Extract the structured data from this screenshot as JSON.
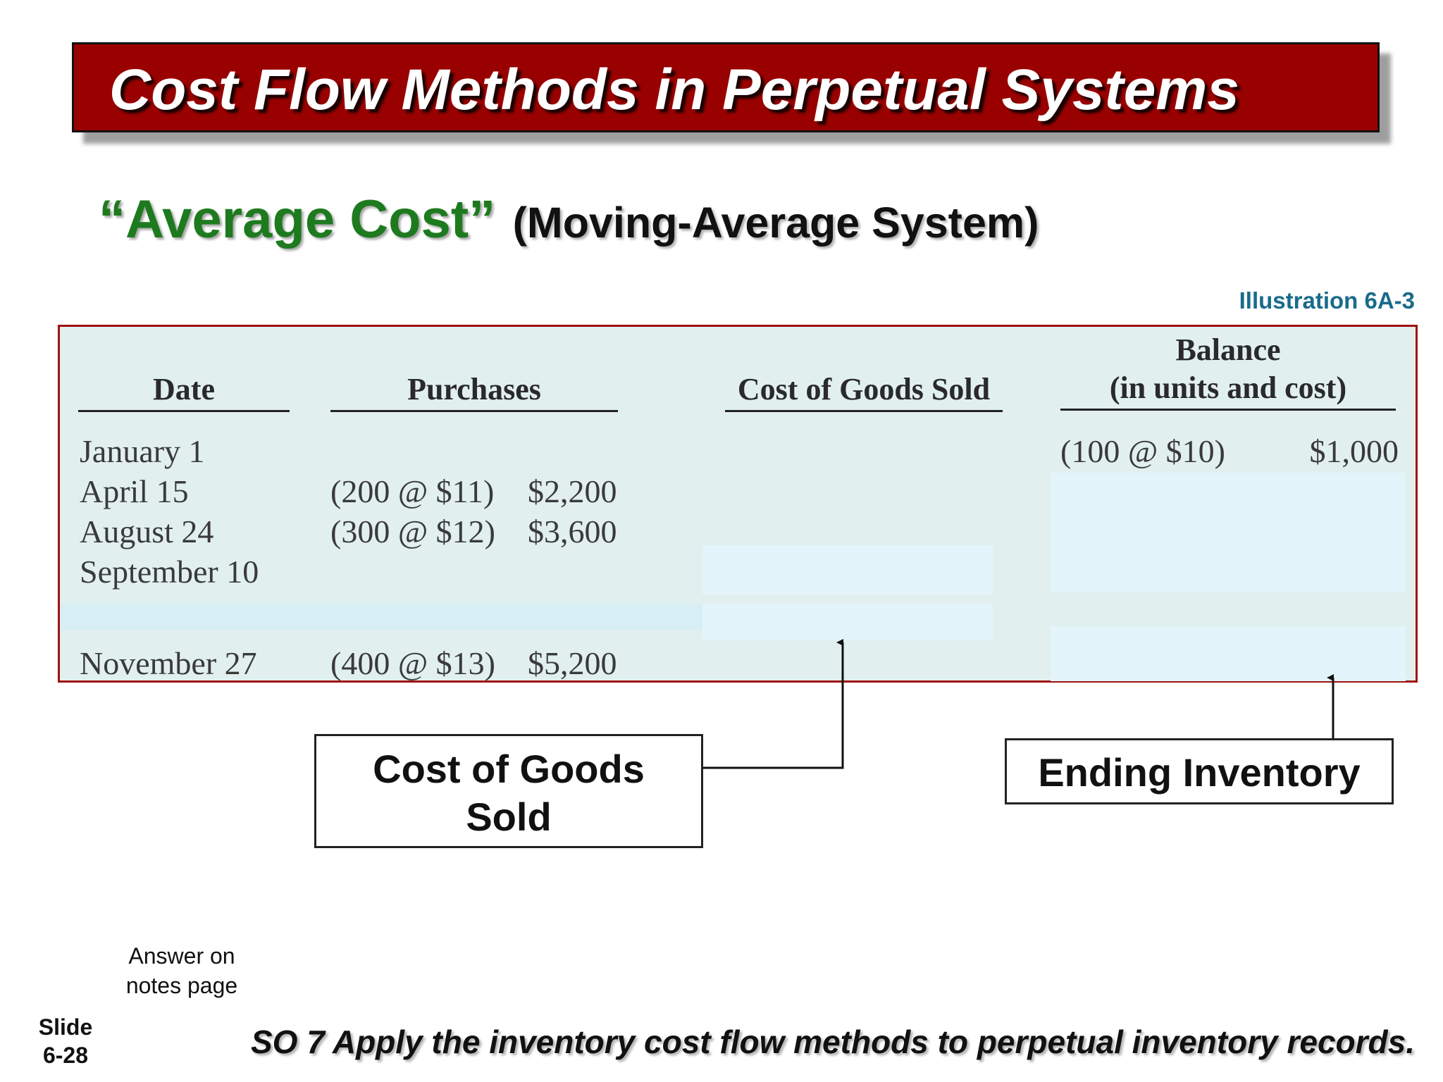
{
  "header": {
    "title": "Cost Flow Methods in Perpetual Systems"
  },
  "subtitle": {
    "main": "“Average Cost”",
    "parenthetical": "(Moving-Average System)"
  },
  "illustration_label": "Illustration 6A-3",
  "table": {
    "headers": {
      "date": "Date",
      "purchases": "Purchases",
      "cogs": "Cost of Goods Sold",
      "balance_line1": "Balance",
      "balance_line2": "(in units and cost)"
    },
    "rows": [
      {
        "date": "January 1",
        "purchase_units": "",
        "purchase_cost": "",
        "balance_units": "(100 @ $10)",
        "balance_cost": "$1,000"
      },
      {
        "date": "April 15",
        "purchase_units": "(200 @ $11)",
        "purchase_cost": "$2,200",
        "balance_units": "",
        "balance_cost": ""
      },
      {
        "date": "August 24",
        "purchase_units": "(300 @ $12)",
        "purchase_cost": "$3,600",
        "balance_units": "",
        "balance_cost": ""
      },
      {
        "date": "September 10",
        "purchase_units": "",
        "purchase_cost": "",
        "balance_units": "",
        "balance_cost": ""
      },
      {
        "date": "November 27",
        "purchase_units": "(400 @ $13)",
        "purchase_cost": "$5,200",
        "balance_units": "",
        "balance_cost": ""
      }
    ]
  },
  "callouts": {
    "cogs_line1": "Cost of Goods",
    "cogs_line2": "Sold",
    "ending_inventory": "Ending Inventory"
  },
  "note": {
    "line1": "Answer on",
    "line2": "notes page"
  },
  "slide": {
    "label": "Slide",
    "number": "6-28"
  },
  "footer": "SO 7  Apply the inventory cost flow methods to perpetual inventory records.",
  "colors": {
    "banner": "#990000",
    "subtitle_green": "#1e7a1e",
    "table_bg": "#e1efef",
    "table_border": "#a01010",
    "illustration": "#1a6b8a"
  }
}
